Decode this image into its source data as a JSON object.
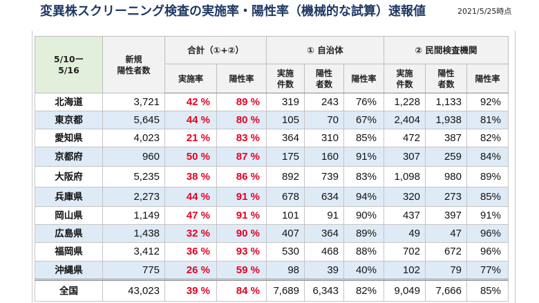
{
  "title": "変異株スクリーニング検査の実施率・陽性率（機械的な試算）速報値",
  "as_of": "2021/5/25時点",
  "colors": {
    "title": "#1f3864",
    "highlight_red": "#e60020",
    "period_header_bg": "#e2efda",
    "stripe_bg": "#deebf7",
    "header_bg": "#f2f2f2"
  },
  "table": {
    "period": [
      "5/10ー",
      "5/16"
    ],
    "new_cases_header": [
      "新規",
      "陽性者数"
    ],
    "group_total": "合計（①+②）",
    "group_local": "① 自治体",
    "group_private": "② 民間検査機関",
    "sub_headers": {
      "total_test_rate": "実施率",
      "total_positive_rate": "陽性率",
      "local_tests": [
        "実施",
        "件数"
      ],
      "local_positives": [
        "陽性",
        "者数"
      ],
      "local_positive_rate": "陽性率",
      "private_tests": [
        "実施",
        "件数"
      ],
      "private_positives": [
        "陽性",
        "者数"
      ],
      "private_positive_rate": "陽性率"
    }
  },
  "rows": [
    {
      "prefecture": "北海道",
      "new_cases": "3,721",
      "total_test_rate": "42 %",
      "total_positive_rate": "89 %",
      "local_tests": "319",
      "local_positives": "243",
      "local_positive_rate": "76%",
      "private_tests": "1,228",
      "private_positives": "1,133",
      "private_positive_rate": "92%"
    },
    {
      "prefecture": "東京都",
      "new_cases": "5,645",
      "total_test_rate": "44 %",
      "total_positive_rate": "80 %",
      "local_tests": "105",
      "local_positives": "70",
      "local_positive_rate": "67%",
      "private_tests": "2,404",
      "private_positives": "1,938",
      "private_positive_rate": "81%"
    },
    {
      "prefecture": "愛知県",
      "new_cases": "4,023",
      "total_test_rate": "21 %",
      "total_positive_rate": "83 %",
      "local_tests": "364",
      "local_positives": "310",
      "local_positive_rate": "85%",
      "private_tests": "472",
      "private_positives": "387",
      "private_positive_rate": "82%"
    },
    {
      "prefecture": "京都府",
      "new_cases": "960",
      "total_test_rate": "50 %",
      "total_positive_rate": "87 %",
      "local_tests": "175",
      "local_positives": "160",
      "local_positive_rate": "91%",
      "private_tests": "307",
      "private_positives": "259",
      "private_positive_rate": "84%"
    },
    {
      "prefecture": "大阪府",
      "new_cases": "5,235",
      "total_test_rate": "38 %",
      "total_positive_rate": "86 %",
      "local_tests": "892",
      "local_positives": "739",
      "local_positive_rate": "83%",
      "private_tests": "1,098",
      "private_positives": "980",
      "private_positive_rate": "89%"
    },
    {
      "prefecture": "兵庫県",
      "new_cases": "2,273",
      "total_test_rate": "44 %",
      "total_positive_rate": "91 %",
      "local_tests": "678",
      "local_positives": "634",
      "local_positive_rate": "94%",
      "private_tests": "320",
      "private_positives": "273",
      "private_positive_rate": "85%"
    },
    {
      "prefecture": "岡山県",
      "new_cases": "1,149",
      "total_test_rate": "47 %",
      "total_positive_rate": "91 %",
      "local_tests": "101",
      "local_positives": "91",
      "local_positive_rate": "90%",
      "private_tests": "437",
      "private_positives": "397",
      "private_positive_rate": "91%"
    },
    {
      "prefecture": "広島県",
      "new_cases": "1,438",
      "total_test_rate": "32 %",
      "total_positive_rate": "90 %",
      "local_tests": "407",
      "local_positives": "364",
      "local_positive_rate": "89%",
      "private_tests": "49",
      "private_positives": "47",
      "private_positive_rate": "96%"
    },
    {
      "prefecture": "福岡県",
      "new_cases": "3,412",
      "total_test_rate": "36 %",
      "total_positive_rate": "93 %",
      "local_tests": "530",
      "local_positives": "468",
      "local_positive_rate": "88%",
      "private_tests": "702",
      "private_positives": "672",
      "private_positive_rate": "96%"
    },
    {
      "prefecture": "沖縄県",
      "new_cases": "775",
      "total_test_rate": "26 %",
      "total_positive_rate": "59 %",
      "local_tests": "98",
      "local_positives": "39",
      "local_positive_rate": "40%",
      "private_tests": "102",
      "private_positives": "79",
      "private_positive_rate": "77%"
    }
  ],
  "total_row": {
    "prefecture": "全国",
    "new_cases": "43,023",
    "total_test_rate": "39 %",
    "total_positive_rate": "84 %",
    "local_tests": "7,689",
    "local_positives": "6,343",
    "local_positive_rate": "82%",
    "private_tests": "9,049",
    "private_positives": "7,666",
    "private_positive_rate": "85%"
  }
}
